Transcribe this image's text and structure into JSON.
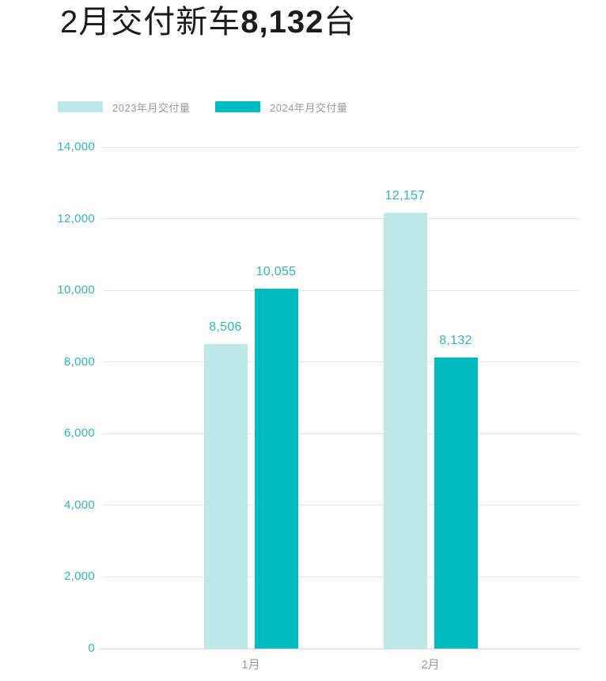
{
  "title": {
    "prefix": "2月交付新车",
    "highlight": "8,132",
    "suffix": "台"
  },
  "legend": [
    {
      "label": "2023年月交付量",
      "color": "#bde8e8"
    },
    {
      "label": "2024年月交付量",
      "color": "#00bcc0"
    }
  ],
  "colors": {
    "title_text": "#1b1b1b",
    "axis_text": "#2fb6bb",
    "muted_text": "#9b9b9b",
    "gridline": "#e4e4e4",
    "series_2023": "#bde8e8",
    "series_2024": "#00bcc0",
    "background": "#ffffff"
  },
  "chart_data": {
    "type": "bar",
    "title": "2月交付新车8,132台",
    "categories": [
      "1月",
      "2月"
    ],
    "series": [
      {
        "name": "2023年月交付量",
        "color": "#bde8e8",
        "values": [
          8506,
          12157
        ],
        "display": [
          "8,506",
          "12,157"
        ]
      },
      {
        "name": "2024年月交付量",
        "color": "#00bcc0",
        "values": [
          10055,
          8132
        ],
        "display": [
          "10,055",
          "8,132"
        ]
      }
    ],
    "ylim": [
      0,
      14000
    ],
    "ytick_step": 2000,
    "yticks": [
      "0",
      "2,000",
      "4,000",
      "6,000",
      "8,000",
      "10,000",
      "12,000",
      "14,000"
    ],
    "grid": "horizontal",
    "legend_position": "top-left",
    "value_labels": "above-bars"
  }
}
